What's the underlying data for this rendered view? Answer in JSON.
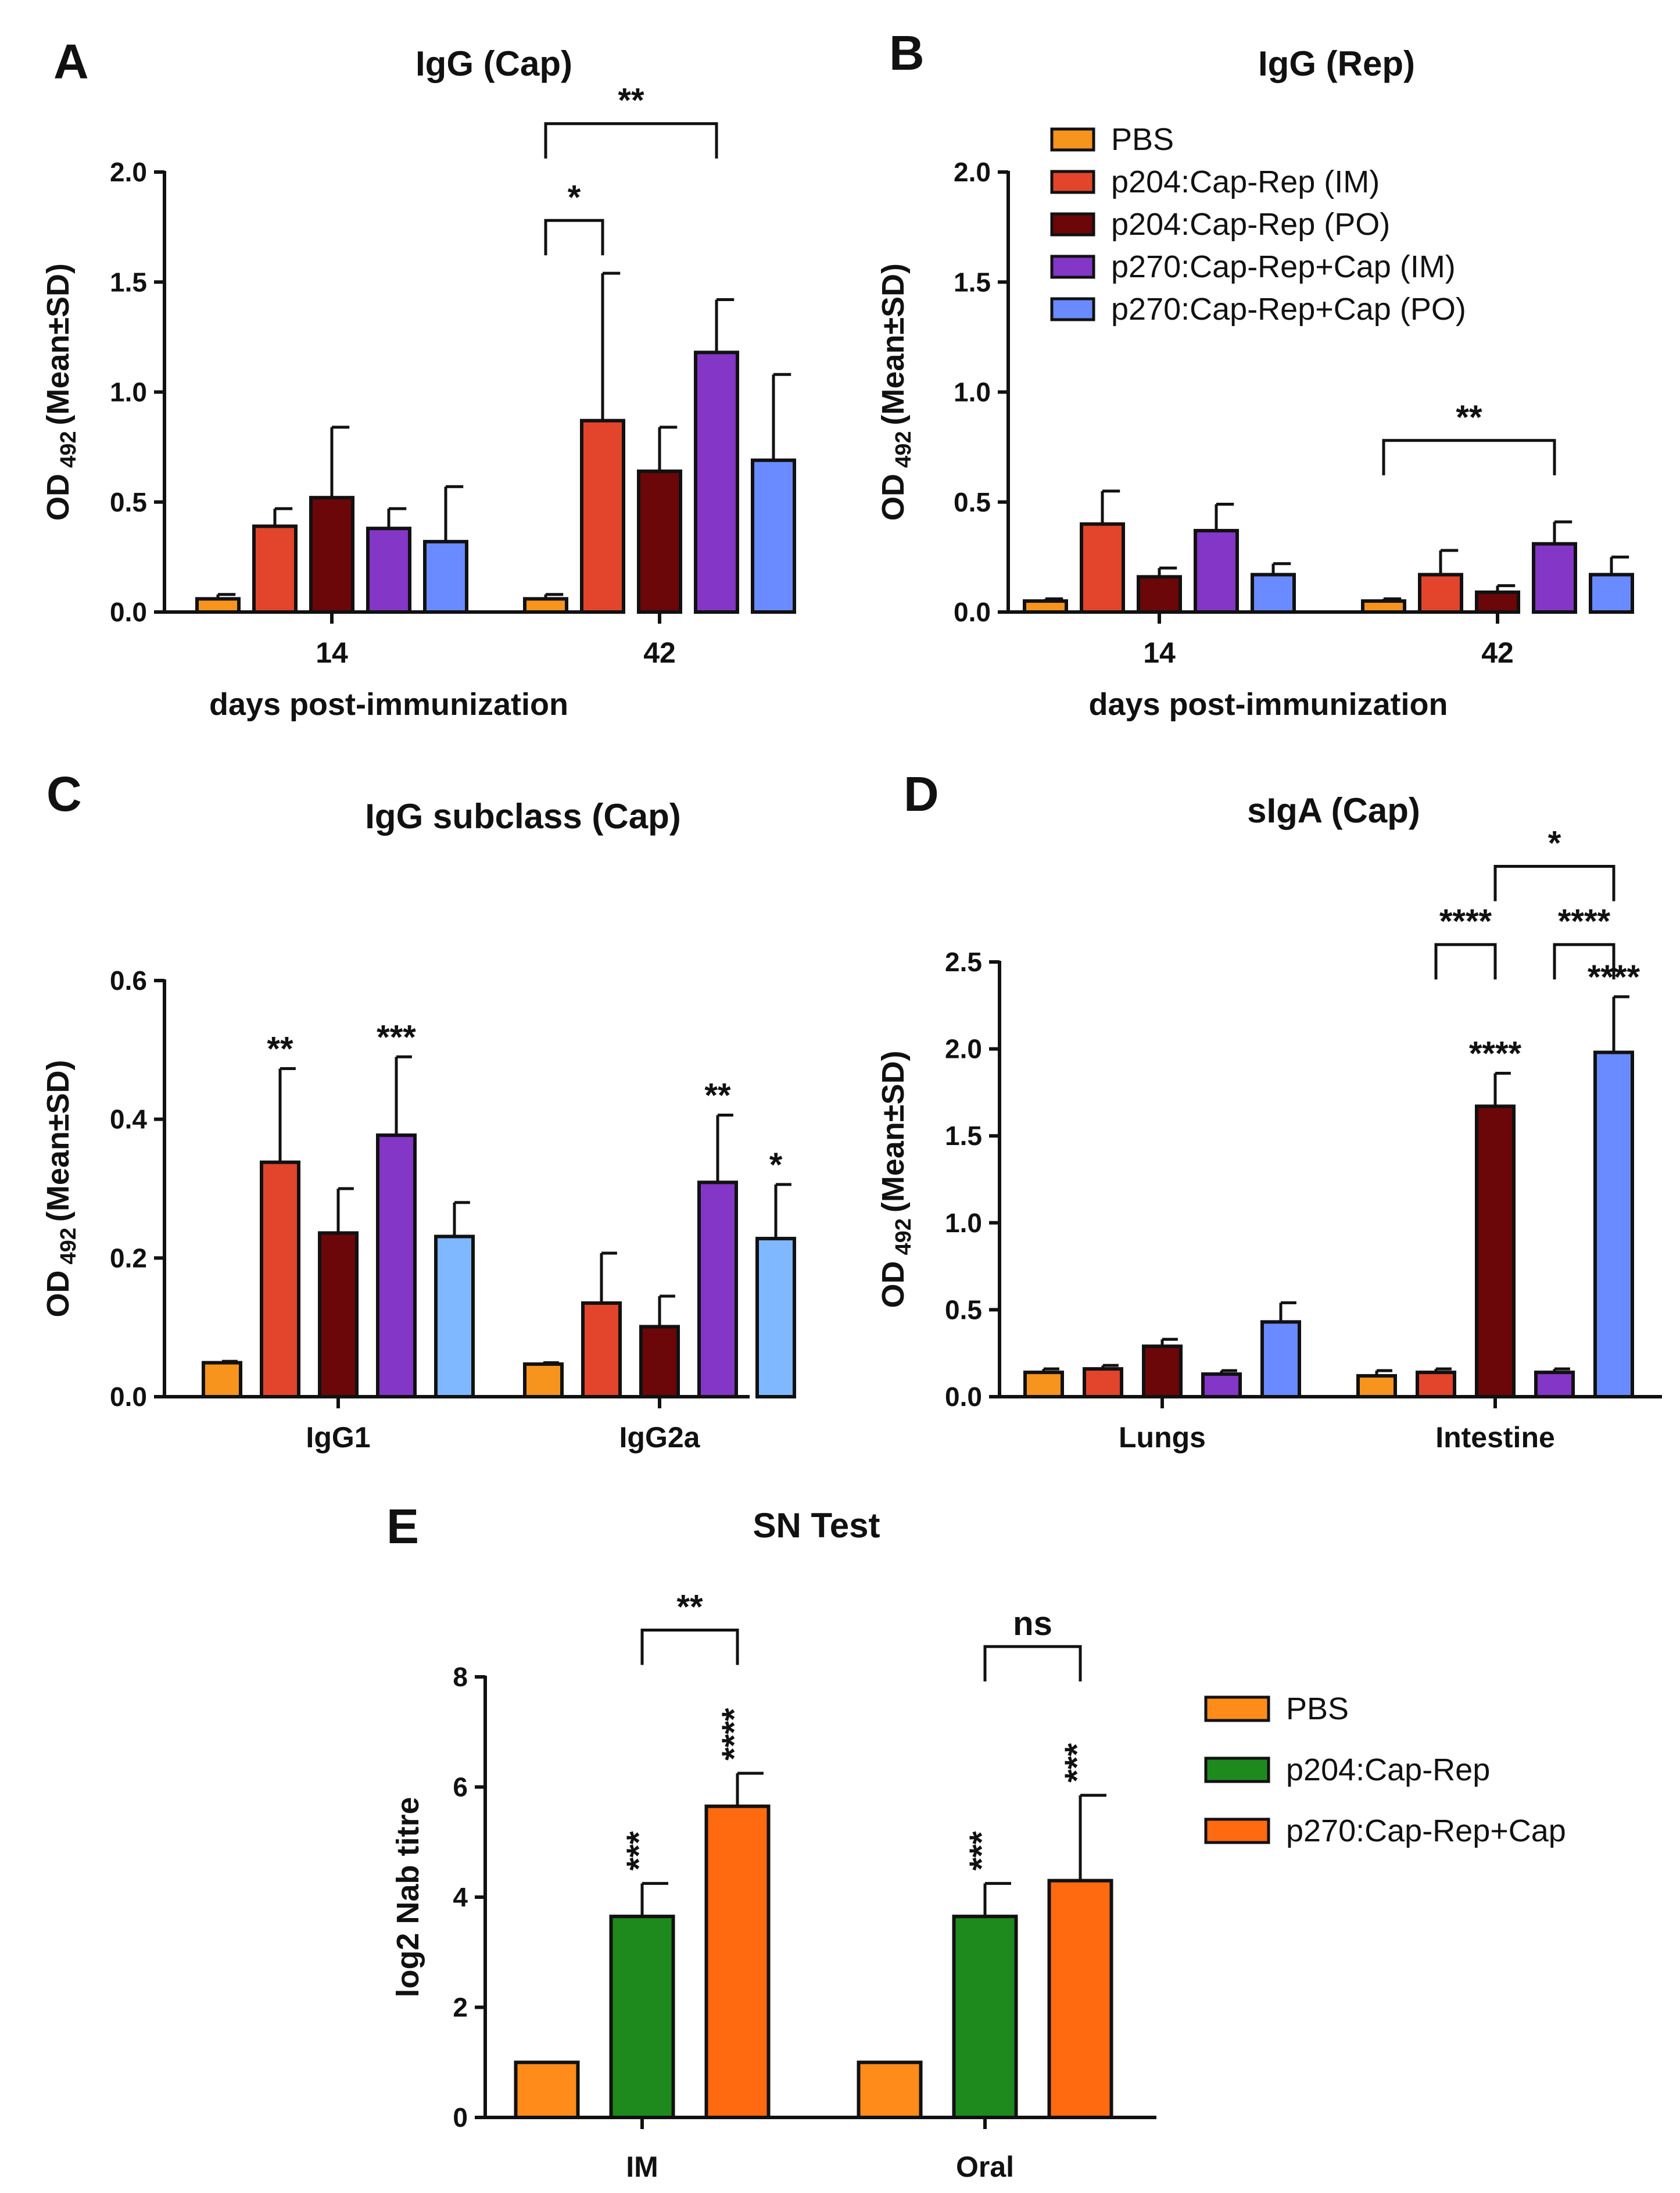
{
  "chart_data": [
    {
      "id": "A",
      "type": "bar",
      "letter": "A",
      "title": "IgG (Cap)",
      "ylabel_main": "OD",
      "ylabel_sub": "492",
      "ylabel_tail": "(Mean±SD)",
      "xlabel": "days post-immunization",
      "ylim": [
        0,
        2.0
      ],
      "yticks": [
        "0.0",
        "0.5",
        "1.0",
        "1.5",
        "2.0"
      ],
      "categories": [
        "14",
        "42"
      ],
      "series": [
        {
          "name": "PBS",
          "color": "#f7941d",
          "values": [
            0.06,
            0.06
          ],
          "errors": [
            0.02,
            0.02
          ]
        },
        {
          "name": "p204:Cap-Rep (IM)",
          "color": "#e2452b",
          "values": [
            0.39,
            0.87
          ],
          "errors": [
            0.08,
            0.67
          ]
        },
        {
          "name": "p204:Cap-Rep (PO)",
          "color": "#6b0609",
          "values": [
            0.52,
            0.64
          ],
          "errors": [
            0.32,
            0.2
          ]
        },
        {
          "name": "p270:Cap-Rep+Cap (IM)",
          "color": "#8436c7",
          "values": [
            0.38,
            1.18
          ],
          "errors": [
            0.09,
            0.24
          ]
        },
        {
          "name": "p270:Cap-Rep+Cap (PO)",
          "color": "#6a8bff",
          "values": [
            0.32,
            0.69
          ],
          "errors": [
            0.25,
            0.39
          ]
        }
      ],
      "brackets": [
        {
          "label": "*",
          "from": [
            1,
            0
          ],
          "to": [
            1,
            1
          ],
          "top": 1.78
        },
        {
          "label": "**",
          "from": [
            1,
            0
          ],
          "to": [
            1,
            3
          ],
          "top": 2.22
        }
      ],
      "bar_stars": []
    },
    {
      "id": "B",
      "type": "bar",
      "letter": "B",
      "title": "IgG (Rep)",
      "ylabel_main": "OD",
      "ylabel_sub": "492",
      "ylabel_tail": "(Mean±SD)",
      "xlabel": "days post-immunization",
      "ylim": [
        0,
        2.0
      ],
      "yticks": [
        "0.0",
        "0.5",
        "1.0",
        "1.5",
        "2.0"
      ],
      "categories": [
        "14",
        "42"
      ],
      "series": [
        {
          "name": "PBS",
          "color": "#f7941d",
          "values": [
            0.05,
            0.05
          ],
          "errors": [
            0.01,
            0.01
          ]
        },
        {
          "name": "p204:Cap-Rep (IM)",
          "color": "#e2452b",
          "values": [
            0.4,
            0.17
          ],
          "errors": [
            0.15,
            0.11
          ]
        },
        {
          "name": "p204:Cap-Rep (PO)",
          "color": "#6b0609",
          "values": [
            0.16,
            0.09
          ],
          "errors": [
            0.04,
            0.03
          ]
        },
        {
          "name": "p270:Cap-Rep+Cap (IM)",
          "color": "#8436c7",
          "values": [
            0.37,
            0.31
          ],
          "errors": [
            0.12,
            0.1
          ]
        },
        {
          "name": "p270:Cap-Rep+Cap (PO)",
          "color": "#6a8bff",
          "values": [
            0.17,
            0.17
          ],
          "errors": [
            0.05,
            0.08
          ]
        }
      ],
      "brackets": [
        {
          "label": "**",
          "from": [
            1,
            0
          ],
          "to": [
            1,
            3
          ],
          "top": 0.78
        }
      ],
      "bar_stars": []
    },
    {
      "id": "C",
      "type": "bar",
      "letter": "C",
      "title": "IgG subclass (Cap)",
      "ylabel_main": "OD",
      "ylabel_sub": "492",
      "ylabel_tail": "(Mean±SD)",
      "xlabel": "",
      "ylim": [
        0,
        0.6
      ],
      "yticks": [
        "0.0",
        "0.2",
        "0.4",
        "0.6"
      ],
      "categories": [
        "IgG1",
        "IgG2a"
      ],
      "series": [
        {
          "name": "PBS",
          "color": "#f7941d",
          "values": [
            0.049,
            0.047
          ],
          "errors": [
            0.002,
            0.002
          ]
        },
        {
          "name": "p204:Cap-Rep (IM)",
          "color": "#e2452b",
          "values": [
            0.338,
            0.135
          ],
          "errors": [
            0.135,
            0.072
          ]
        },
        {
          "name": "p204:Cap-Rep (PO)",
          "color": "#6b0609",
          "values": [
            0.236,
            0.101
          ],
          "errors": [
            0.064,
            0.044
          ]
        },
        {
          "name": "p270:Cap-Rep+Cap (IM)",
          "color": "#8436c7",
          "values": [
            0.377,
            0.309
          ],
          "errors": [
            0.113,
            0.097
          ]
        },
        {
          "name": "p270:Cap-Rep+Cap (PO)",
          "color": "#7fb8ff",
          "values": [
            0.231,
            0.228
          ],
          "errors": [
            0.049,
            0.078
          ]
        }
      ],
      "brackets": [],
      "bar_stars": [
        {
          "series": 1,
          "cat": 0,
          "label": "**"
        },
        {
          "series": 3,
          "cat": 0,
          "label": "***"
        },
        {
          "series": 3,
          "cat": 1,
          "label": "**"
        },
        {
          "series": 4,
          "cat": 1,
          "label": "*"
        }
      ]
    },
    {
      "id": "D",
      "type": "bar",
      "letter": "D",
      "title": "sIgA (Cap)",
      "ylabel_main": "OD",
      "ylabel_sub": "492",
      "ylabel_tail": "(Mean±SD)",
      "xlabel": "",
      "ylim": [
        0,
        2.5
      ],
      "yticks": [
        "0.0",
        "0.5",
        "1.0",
        "1.5",
        "2.0",
        "2.5"
      ],
      "categories": [
        "Lungs",
        "Intestine"
      ],
      "series": [
        {
          "name": "PBS",
          "color": "#f7941d",
          "values": [
            0.14,
            0.12
          ],
          "errors": [
            0.02,
            0.03
          ]
        },
        {
          "name": "p204:Cap-Rep (IM)",
          "color": "#e2452b",
          "values": [
            0.16,
            0.14
          ],
          "errors": [
            0.02,
            0.02
          ]
        },
        {
          "name": "p204:Cap-Rep (PO)",
          "color": "#6b0609",
          "values": [
            0.29,
            1.67
          ],
          "errors": [
            0.04,
            0.19
          ]
        },
        {
          "name": "p270:Cap-Rep+Cap (IM)",
          "color": "#8436c7",
          "values": [
            0.13,
            0.14
          ],
          "errors": [
            0.02,
            0.02
          ]
        },
        {
          "name": "p270:Cap-Rep+Cap (PO)",
          "color": "#6a8bff",
          "values": [
            0.43,
            1.98
          ],
          "errors": [
            0.11,
            0.32
          ]
        }
      ],
      "brackets": [
        {
          "label": "****",
          "from": [
            1,
            1
          ],
          "to": [
            1,
            2
          ],
          "top": 2.6
        },
        {
          "label": "****",
          "from": [
            1,
            3
          ],
          "to": [
            1,
            4
          ],
          "top": 2.6
        },
        {
          "label": "*",
          "from": [
            1,
            2
          ],
          "to": [
            1,
            4
          ],
          "top": 3.05
        }
      ],
      "bar_stars": [
        {
          "series": 2,
          "cat": 1,
          "label": "****"
        },
        {
          "series": 4,
          "cat": 1,
          "label": "****"
        }
      ]
    },
    {
      "id": "E",
      "type": "bar",
      "letter": "E",
      "title": "SN Test",
      "ylabel_main": "log2 Nab titre",
      "xlabel": "",
      "ylim": [
        0,
        8
      ],
      "yticks": [
        "0",
        "2",
        "4",
        "6",
        "8"
      ],
      "categories": [
        "IM",
        "Oral"
      ],
      "series": [
        {
          "name": "PBS",
          "color": "#ff8c1a",
          "values": [
            1.0,
            1.0
          ],
          "errors": [
            0,
            0
          ]
        },
        {
          "name": "p204:Cap-Rep",
          "color": "#1e8a1e",
          "values": [
            3.65,
            3.65
          ],
          "errors": [
            0.6,
            0.6
          ]
        },
        {
          "name": "p270:Cap-Rep+Cap",
          "color": "#ff6a10",
          "values": [
            5.65,
            4.3
          ],
          "errors": [
            0.6,
            1.55
          ]
        }
      ],
      "brackets": [
        {
          "label": "**",
          "from": [
            0,
            1
          ],
          "to": [
            0,
            2
          ],
          "top": 8.85
        },
        {
          "label": "ns",
          "from": [
            1,
            1
          ],
          "to": [
            1,
            2
          ],
          "top": 8.55
        }
      ],
      "bar_stars": [
        {
          "series": 1,
          "cat": 0,
          "label": "***"
        },
        {
          "series": 2,
          "cat": 0,
          "label": "****"
        },
        {
          "series": 1,
          "cat": 1,
          "label": "***"
        },
        {
          "series": 2,
          "cat": 1,
          "label": "***"
        }
      ]
    }
  ],
  "legend_top": {
    "entries": [
      {
        "label": "PBS",
        "color": "#f7941d"
      },
      {
        "label": "p204:Cap-Rep (IM)",
        "color": "#e2452b"
      },
      {
        "label": "p204:Cap-Rep (PO)",
        "color": "#6b0609"
      },
      {
        "label": "p270:Cap-Rep+Cap (IM)",
        "color": "#8436c7"
      },
      {
        "label": "p270:Cap-Rep+Cap (PO)",
        "color": "#6a8bff"
      }
    ]
  },
  "legend_e": {
    "entries": [
      {
        "label": "PBS",
        "color": "#ff8c1a"
      },
      {
        "label": "p204:Cap-Rep",
        "color": "#1e8a1e"
      },
      {
        "label": "p270:Cap-Rep+Cap",
        "color": "#ff6a10"
      }
    ]
  }
}
